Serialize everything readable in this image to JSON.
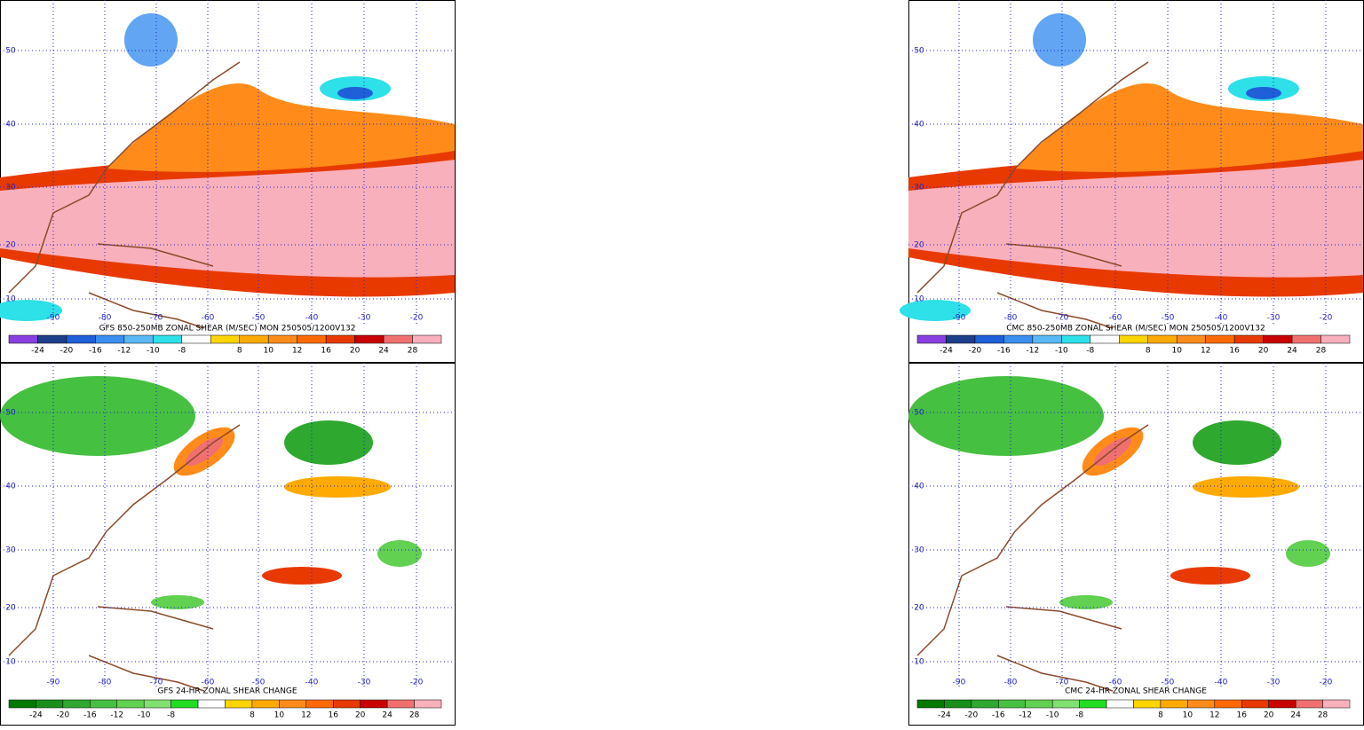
{
  "panels": [
    {
      "title": "GFS 850-250MB ZONAL SHEAR (M/SEC) MON 250505/1200V132",
      "lat_labels": [
        50,
        40,
        30,
        20,
        10
      ],
      "lon_labels": [
        -90,
        -80,
        -70,
        -60,
        -50,
        -40,
        -30,
        -20
      ],
      "colorbar_labels": [
        -24,
        -20,
        -16,
        -12,
        -10,
        -8,
        8,
        10,
        12,
        16,
        20,
        24,
        28
      ]
    },
    {
      "title": "CMC 850-250MB ZONAL SHEAR (M/SEC) MON 250505/1200V132",
      "lat_labels": [
        50,
        40,
        30,
        20,
        10
      ],
      "lon_labels": [
        -90,
        -80,
        -70,
        -60,
        -50,
        -40,
        -30,
        -20
      ],
      "colorbar_labels": [
        -24,
        -20,
        -16,
        -12,
        -10,
        -8,
        8,
        10,
        12,
        16,
        20,
        24,
        28
      ]
    },
    {
      "title": "GFS 24-HR ZONAL SHEAR CHANGE",
      "lat_labels": [
        50,
        40,
        30,
        20,
        10
      ],
      "lon_labels": [
        -90,
        -80,
        -70,
        -60,
        -50,
        -40,
        -30,
        -20
      ],
      "colorbar_labels": [
        -24,
        -20,
        -16,
        -12,
        -10,
        -8,
        8,
        10,
        12,
        16,
        20,
        24,
        28
      ]
    },
    {
      "title": "CMC 24-HR ZONAL SHEAR CHANGE",
      "lat_labels": [
        50,
        40,
        30,
        20,
        10
      ],
      "lon_labels": [
        -90,
        -80,
        -70,
        -60,
        -50,
        -40,
        -30,
        -20
      ],
      "colorbar_labels": [
        -24,
        -20,
        -16,
        -12,
        -10,
        -8,
        8,
        10,
        12,
        16,
        20,
        24,
        28
      ]
    }
  ]
}
